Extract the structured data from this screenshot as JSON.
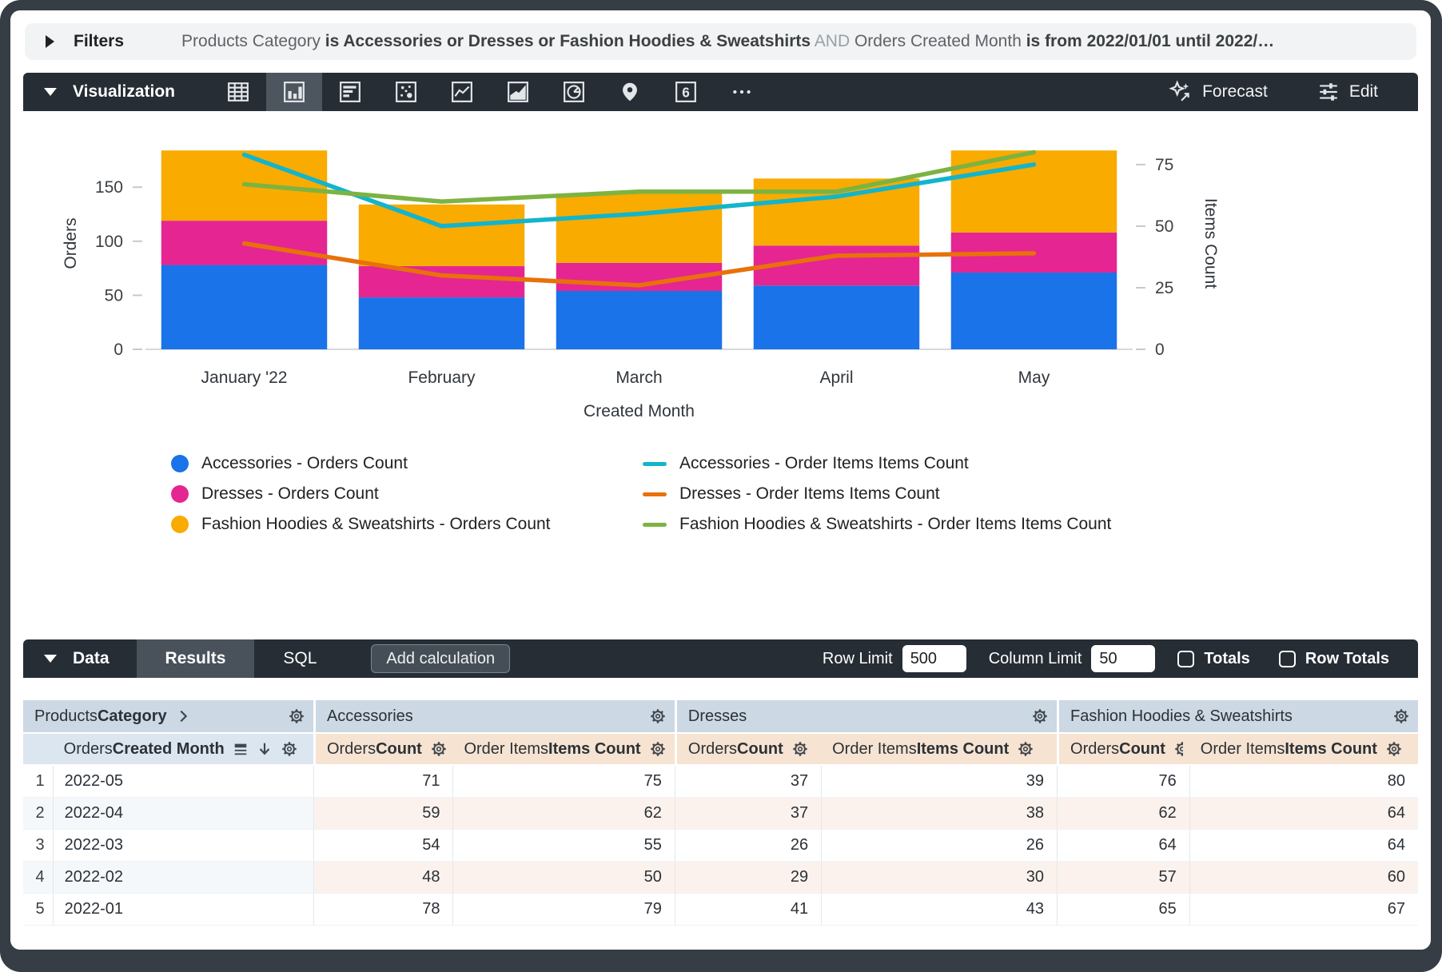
{
  "filters": {
    "label": "Filters",
    "parts": [
      {
        "text": "Products Category ",
        "style": "plain"
      },
      {
        "text": "is Accessories or Dresses or Fashion Hoodies & Sweatshirts",
        "style": "bold"
      },
      {
        "text": " AND ",
        "style": "light"
      },
      {
        "text": "Orders Created Month ",
        "style": "plain"
      },
      {
        "text": "is from 2022/01/01 until 2022/…",
        "style": "bold"
      }
    ]
  },
  "viz": {
    "label": "Visualization",
    "tools": [
      "table",
      "column",
      "bar",
      "scatter",
      "line",
      "area",
      "pie",
      "map",
      "single-value",
      "more"
    ],
    "selected_tool": "column",
    "forecast_label": "Forecast",
    "edit_label": "Edit"
  },
  "chart_data": {
    "type": "bar",
    "subtype": "stacked-columns-with-dual-axis-lines",
    "categories": [
      "January '22",
      "February",
      "March",
      "April",
      "May"
    ],
    "bar_series": [
      {
        "name": "Accessories - Orders Count",
        "color": "#1A73E8",
        "values": [
          78,
          48,
          54,
          59,
          71
        ]
      },
      {
        "name": "Dresses - Orders Count",
        "color": "#E52592",
        "values": [
          41,
          29,
          26,
          37,
          37
        ]
      },
      {
        "name": "Fashion Hoodies & Sweatshirts - Orders Count",
        "color": "#F9AB00",
        "values": [
          65,
          57,
          64,
          62,
          76
        ]
      }
    ],
    "line_series": [
      {
        "name": "Accessories - Order Items Items Count",
        "color": "#12B5CB",
        "values": [
          79,
          50,
          55,
          62,
          75
        ]
      },
      {
        "name": "Dresses - Order Items Items Count",
        "color": "#E8710A",
        "values": [
          43,
          30,
          26,
          38,
          39
        ]
      },
      {
        "name": "Fashion Hoodies & Sweatshirts - Order Items Items Count",
        "color": "#7CB342",
        "values": [
          67,
          60,
          64,
          64,
          80
        ]
      }
    ],
    "xlabel": "Created Month",
    "left_axis": {
      "label": "Orders",
      "ticks": [
        0,
        50,
        100,
        150
      ],
      "max": 196
    },
    "right_axis": {
      "label": "Items Count",
      "ticks": [
        0,
        25,
        50,
        75
      ],
      "max": 86
    },
    "grid": false,
    "legend_position": "bottom"
  },
  "data_panel": {
    "label": "Data",
    "tabs": [
      {
        "label": "Results",
        "active": true
      },
      {
        "label": "SQL",
        "active": false
      }
    ],
    "add_calculation_label": "Add calculation",
    "row_limit_label": "Row Limit",
    "row_limit_value": "500",
    "column_limit_label": "Column Limit",
    "column_limit_value": "50",
    "totals_label": "Totals",
    "totals_checked": false,
    "row_totals_label": "Row Totals",
    "row_totals_checked": false
  },
  "table": {
    "dim_group_header": {
      "plain": "Products ",
      "bold": "Category"
    },
    "groups": [
      {
        "name": "Accessories"
      },
      {
        "name": "Dresses"
      },
      {
        "name": "Fashion Hoodies & Sweatshirts"
      }
    ],
    "dim_header": {
      "plain": "Orders ",
      "bold": "Created Month"
    },
    "orders_header": {
      "plain": "Orders ",
      "bold": "Count"
    },
    "items_header": {
      "plain": "Order Items ",
      "bold": "Items Count"
    },
    "rows": [
      {
        "n": "1",
        "month": "2022-05",
        "values": [
          71,
          75,
          37,
          39,
          76,
          80
        ]
      },
      {
        "n": "2",
        "month": "2022-04",
        "values": [
          59,
          62,
          37,
          38,
          62,
          64
        ]
      },
      {
        "n": "3",
        "month": "2022-03",
        "values": [
          54,
          55,
          26,
          26,
          64,
          64
        ]
      },
      {
        "n": "4",
        "month": "2022-02",
        "values": [
          48,
          50,
          29,
          30,
          57,
          60
        ]
      },
      {
        "n": "5",
        "month": "2022-01",
        "values": [
          78,
          79,
          41,
          43,
          65,
          67
        ]
      }
    ]
  },
  "colors": {
    "toolbar_dark": "#262d34",
    "toolbar_selected": "#4d565e",
    "header_group_bg": "#ccd8e3",
    "header_dim_bg": "#dce6f0",
    "header_measure_bg": "#f6e3d1",
    "alt_row_dim_bg": "#f5f8fb",
    "alt_row_measure_bg": "#fbf2ed"
  }
}
